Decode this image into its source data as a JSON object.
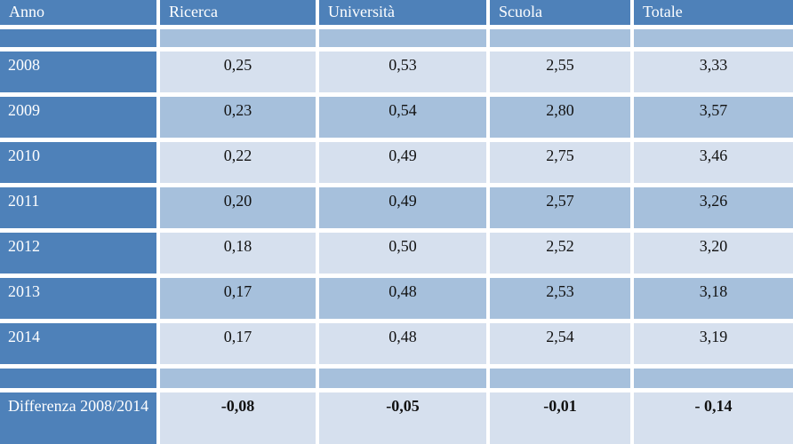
{
  "chart_data": {
    "type": "table",
    "title": "",
    "columns": [
      "Anno",
      "Ricerca",
      "Università",
      "Scuola",
      "Totale"
    ],
    "rows": [
      {
        "label": "2008",
        "values": [
          "0,25",
          "0,53",
          "2,55",
          "3,33"
        ],
        "bold": false
      },
      {
        "label": "2009",
        "values": [
          "0,23",
          "0,54",
          "2,80",
          "3,57"
        ],
        "bold": false
      },
      {
        "label": "2010",
        "values": [
          "0,22",
          "0,49",
          "2,75",
          "3,46"
        ],
        "bold": false
      },
      {
        "label": "2011",
        "values": [
          "0,20",
          "0,49",
          "2,57",
          "3,26"
        ],
        "bold": false
      },
      {
        "label": "2012",
        "values": [
          "0,18",
          "0,50",
          "2,52",
          "3,20"
        ],
        "bold": false
      },
      {
        "label": "2013",
        "values": [
          "0,17",
          "0,48",
          "2,53",
          "3,18"
        ],
        "bold": false
      },
      {
        "label": "2014",
        "values": [
          "0,17",
          "0,48",
          "2,54",
          "3,19"
        ],
        "bold": false
      },
      {
        "label": "Differenza 2008/2014",
        "values": [
          "-0,08",
          "-0,05",
          "-0,01",
          "- 0,14"
        ],
        "bold": true
      }
    ],
    "colors": {
      "header_bg": "#4e81b9",
      "header_text": "#ffffff",
      "band_light": "#d6e0ee",
      "band_medium": "#a6c0dc",
      "value_text": "#121212",
      "cell_gap": "#ffffff"
    },
    "layout": {
      "banding": "rows alternate light/medium starting light at 2008; spacer strips are medium; label column and header are dark blue",
      "grid": "white gaps between all cells"
    }
  }
}
